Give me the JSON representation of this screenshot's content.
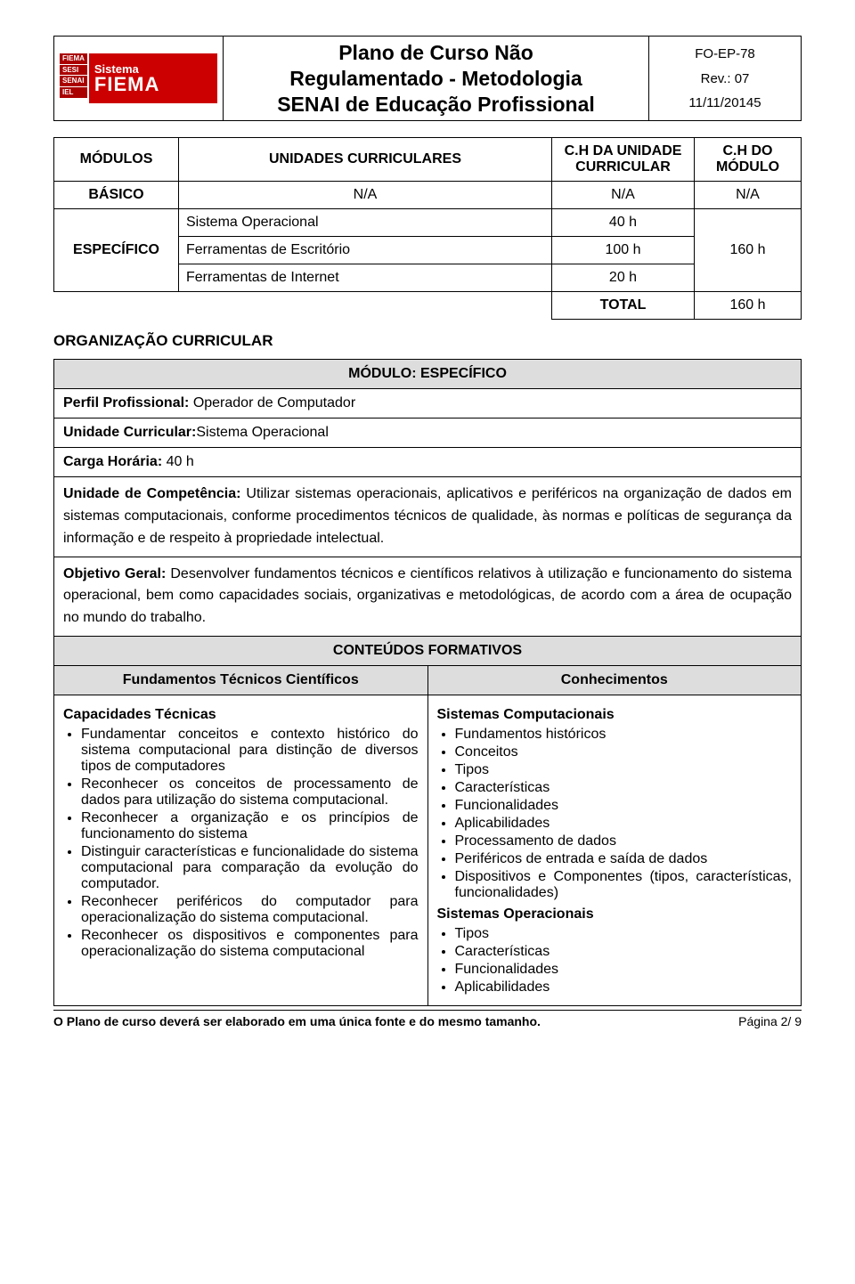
{
  "header": {
    "logo": {
      "l1": "Sistema",
      "l2": "FIEMA",
      "badges": [
        "FIEMA",
        "SESI",
        "SENAI",
        "IEL"
      ]
    },
    "title_line1": "Plano de Curso Não",
    "title_line2": "Regulamentado - Metodologia",
    "title_line3": "SENAI de Educação Profissional",
    "form_code": "FO-EP-78",
    "rev": "Rev.: 07",
    "date": "11/11/20145"
  },
  "modules_table": {
    "headers": {
      "modulos": "MÓDULOS",
      "unidades": "UNIDADES CURRICULARES",
      "ch_unidade": "C.H DA UNIDADE CURRICULAR",
      "ch_modulo": "C.H DO MÓDULO"
    },
    "basico_row": {
      "label": "BÁSICO",
      "unidades": "N/A",
      "ch_u": "N/A",
      "ch_m": "N/A"
    },
    "especifico": {
      "label": "ESPECÍFICO",
      "rows": [
        {
          "unidade": "Sistema Operacional",
          "ch": "40 h"
        },
        {
          "unidade": "Ferramentas de Escritório",
          "ch": "100 h"
        },
        {
          "unidade": "Ferramentas de Internet",
          "ch": "20 h"
        }
      ],
      "ch_modulo": "160 h"
    },
    "total": {
      "label": "TOTAL",
      "value": "160 h"
    }
  },
  "org_title": "ORGANIZAÇÃO CURRICULAR",
  "detail": {
    "modulo_header": "MÓDULO: ESPECÍFICO",
    "perfil_label": "Perfil Profissional: ",
    "perfil_value": "Operador de Computador",
    "uc_label": "Unidade Curricular:",
    "uc_value": "Sistema Operacional",
    "ch_label": "Carga Horária: ",
    "ch_value": "40 h",
    "competencia_label": "Unidade de Competência: ",
    "competencia_text": "Utilizar sistemas operacionais, aplicativos e periféricos na organização de dados em sistemas computacionais, conforme procedimentos técnicos de qualidade, às normas e políticas de segurança da informação e de respeito à propriedade intelectual.",
    "objetivo_label": "Objetivo Geral: ",
    "objetivo_text": "Desenvolver fundamentos técnicos e científicos relativos à utilização e funcionamento do sistema operacional, bem como capacidades sociais, organizativas e metodológicas, de acordo com a área de ocupação no mundo do trabalho.",
    "conteudos_header": "CONTEÚDOS FORMATIVOS",
    "col_left_header": "Fundamentos Técnicos Científicos",
    "col_right_header": "Conhecimentos",
    "cap_tec_title": "Capacidades Técnicas",
    "cap_tec_items": [
      "Fundamentar conceitos e contexto histórico do sistema computacional para distinção de diversos tipos de computadores",
      "Reconhecer os conceitos de processamento de dados para utilização do sistema computacional.",
      "Reconhecer a organização e os princípios de funcionamento do sistema",
      "Distinguir características e funcionalidade do sistema computacional para comparação da evolução do computador.",
      "Reconhecer periféricos do computador para operacionalização do sistema computacional.",
      "Reconhecer os dispositivos e componentes para operacionalização do sistema computacional"
    ],
    "sist_comp_title": "Sistemas Computacionais",
    "sist_comp_items": [
      "Fundamentos históricos",
      "Conceitos",
      "Tipos",
      "Características",
      "Funcionalidades",
      "Aplicabilidades",
      "Processamento de dados",
      "Periféricos de entrada e saída de dados",
      "Dispositivos e Componentes (tipos, características, funcionalidades)"
    ],
    "sist_op_title": "Sistemas Operacionais",
    "sist_op_items": [
      "Tipos",
      "Características",
      "Funcionalidades",
      "Aplicabilidades"
    ]
  },
  "footer": {
    "note": "O Plano de curso deverá ser elaborado em uma única fonte e do mesmo tamanho.",
    "page": "Página 2/ 9"
  }
}
